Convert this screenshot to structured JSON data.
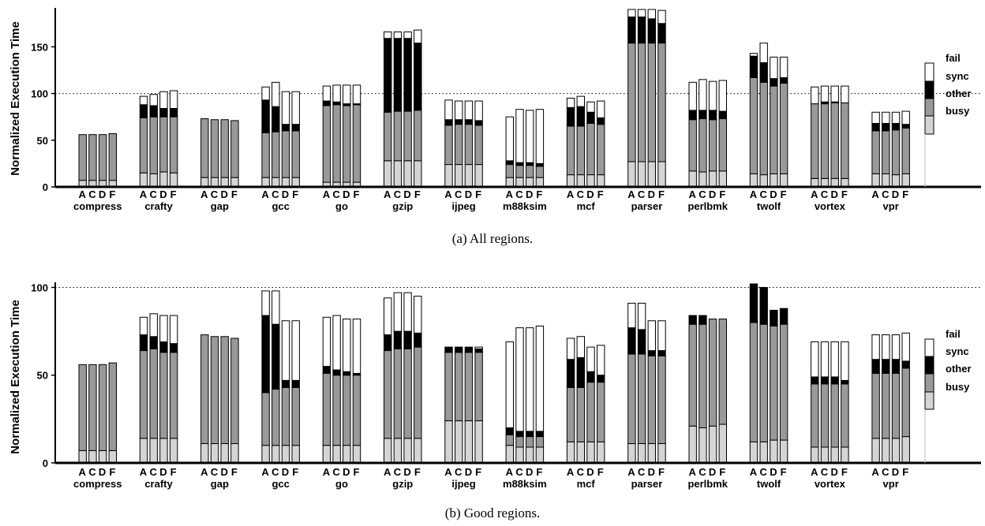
{
  "colors": {
    "busy": "#d4d4d4",
    "other": "#999999",
    "sync": "#000000",
    "fail": "#ffffff",
    "axis": "#000000"
  },
  "legend_labels": [
    "fail",
    "sync",
    "other",
    "busy"
  ],
  "chart_data": [
    {
      "type": "bar",
      "subtype": "stacked",
      "caption": "(a) All regions.",
      "ylabel": "Normalized Execution Time",
      "ylim": [
        0,
        190
      ],
      "yticks": [
        0,
        50,
        100,
        150
      ],
      "reference_line": 100,
      "bar_letters": "ACDF",
      "legend": "right",
      "categories": [
        "compress",
        "crafty",
        "gap",
        "gcc",
        "go",
        "gzip",
        "ijpeg",
        "m88ksim",
        "mcf",
        "parser",
        "perlbmk",
        "twolf",
        "vortex",
        "vpr"
      ],
      "bars": [
        [
          [
            7,
            49,
            0,
            0
          ],
          [
            7,
            49,
            0,
            0
          ],
          [
            7,
            49,
            0,
            0
          ],
          [
            7,
            50,
            0,
            0
          ]
        ],
        [
          [
            15,
            59,
            14,
            9
          ],
          [
            14,
            61,
            12,
            12
          ],
          [
            16,
            59,
            9,
            18
          ],
          [
            15,
            60,
            9,
            19
          ]
        ],
        [
          [
            10,
            63,
            0,
            0
          ],
          [
            10,
            62,
            0,
            0
          ],
          [
            10,
            62,
            0,
            0
          ],
          [
            10,
            61,
            0,
            0
          ]
        ],
        [
          [
            10,
            48,
            35,
            14
          ],
          [
            10,
            49,
            27,
            26
          ],
          [
            10,
            50,
            7,
            35
          ],
          [
            10,
            50,
            7,
            35
          ]
        ],
        [
          [
            5,
            82,
            5,
            16
          ],
          [
            5,
            83,
            3,
            18
          ],
          [
            5,
            82,
            2,
            20
          ],
          [
            5,
            83,
            1,
            20
          ]
        ],
        [
          [
            28,
            52,
            79,
            7
          ],
          [
            28,
            53,
            78,
            7
          ],
          [
            28,
            53,
            78,
            7
          ],
          [
            28,
            54,
            72,
            14
          ]
        ],
        [
          [
            24,
            42,
            6,
            21
          ],
          [
            24,
            43,
            5,
            20
          ],
          [
            24,
            43,
            5,
            20
          ],
          [
            24,
            42,
            5,
            21
          ]
        ],
        [
          [
            10,
            14,
            4,
            47
          ],
          [
            10,
            13,
            3,
            57
          ],
          [
            10,
            13,
            3,
            56
          ],
          [
            10,
            12,
            3,
            58
          ]
        ],
        [
          [
            13,
            52,
            20,
            10
          ],
          [
            13,
            52,
            21,
            11
          ],
          [
            13,
            55,
            12,
            11
          ],
          [
            13,
            54,
            7,
            18
          ]
        ],
        [
          [
            27,
            127,
            28,
            8
          ],
          [
            27,
            127,
            28,
            8
          ],
          [
            27,
            127,
            26,
            10
          ],
          [
            27,
            127,
            21,
            14
          ]
        ],
        [
          [
            17,
            55,
            10,
            30
          ],
          [
            16,
            57,
            9,
            33
          ],
          [
            17,
            55,
            10,
            31
          ],
          [
            17,
            56,
            8,
            33
          ]
        ],
        [
          [
            14,
            103,
            23,
            3
          ],
          [
            13,
            99,
            21,
            21
          ],
          [
            14,
            94,
            8,
            23
          ],
          [
            14,
            97,
            6,
            22
          ]
        ],
        [
          [
            9,
            80,
            0,
            18
          ],
          [
            9,
            80,
            2,
            17
          ],
          [
            9,
            81,
            1,
            17
          ],
          [
            9,
            81,
            0,
            18
          ]
        ],
        [
          [
            14,
            46,
            8,
            12
          ],
          [
            14,
            46,
            8,
            12
          ],
          [
            13,
            48,
            7,
            12
          ],
          [
            14,
            49,
            4,
            14
          ]
        ]
      ]
    },
    {
      "type": "bar",
      "subtype": "stacked",
      "caption": "(b) Good regions.",
      "ylabel": "Normalized Execution Time",
      "ylim": [
        0,
        102
      ],
      "yticks": [
        0,
        50,
        100
      ],
      "reference_line": 100,
      "bar_letters": "ACDF",
      "legend": "right",
      "categories": [
        "compress",
        "crafty",
        "gap",
        "gcc",
        "go",
        "gzip",
        "ijpeg",
        "m88ksim",
        "mcf",
        "parser",
        "perlbmk",
        "twolf",
        "vortex",
        "vpr"
      ],
      "bars": [
        [
          [
            7,
            49,
            0,
            0
          ],
          [
            7,
            49,
            0,
            0
          ],
          [
            7,
            49,
            0,
            0
          ],
          [
            7,
            50,
            0,
            0
          ]
        ],
        [
          [
            14,
            50,
            9,
            10
          ],
          [
            14,
            51,
            7,
            13
          ],
          [
            14,
            49,
            6,
            15
          ],
          [
            14,
            49,
            5,
            16
          ]
        ],
        [
          [
            11,
            62,
            0,
            0
          ],
          [
            11,
            61,
            0,
            0
          ],
          [
            11,
            61,
            0,
            0
          ],
          [
            11,
            60,
            0,
            0
          ]
        ],
        [
          [
            10,
            30,
            44,
            14
          ],
          [
            10,
            32,
            37,
            19
          ],
          [
            10,
            33,
            4,
            34
          ],
          [
            10,
            33,
            4,
            34
          ]
        ],
        [
          [
            10,
            41,
            4,
            28
          ],
          [
            10,
            40,
            3,
            31
          ],
          [
            10,
            40,
            2,
            30
          ],
          [
            10,
            40,
            1,
            31
          ]
        ],
        [
          [
            14,
            50,
            9,
            21
          ],
          [
            14,
            51,
            10,
            22
          ],
          [
            14,
            51,
            10,
            22
          ],
          [
            14,
            52,
            8,
            21
          ]
        ],
        [
          [
            24,
            39,
            3,
            0
          ],
          [
            24,
            39,
            3,
            0
          ],
          [
            24,
            39,
            3,
            0
          ],
          [
            24,
            39,
            2,
            1
          ]
        ],
        [
          [
            10,
            6,
            4,
            49
          ],
          [
            9,
            6,
            3,
            59
          ],
          [
            9,
            6,
            3,
            59
          ],
          [
            9,
            6,
            3,
            60
          ]
        ],
        [
          [
            12,
            31,
            16,
            12
          ],
          [
            12,
            31,
            17,
            12
          ],
          [
            12,
            34,
            6,
            14
          ],
          [
            12,
            34,
            4,
            17
          ]
        ],
        [
          [
            11,
            51,
            15,
            14
          ],
          [
            11,
            51,
            14,
            15
          ],
          [
            11,
            50,
            3,
            17
          ],
          [
            11,
            50,
            3,
            17
          ]
        ],
        [
          [
            21,
            58,
            5,
            0
          ],
          [
            20,
            59,
            5,
            0
          ],
          [
            21,
            61,
            0,
            0
          ],
          [
            22,
            60,
            0,
            0
          ]
        ],
        [
          [
            12,
            68,
            22,
            0
          ],
          [
            12,
            67,
            21,
            0
          ],
          [
            13,
            65,
            9,
            0
          ],
          [
            13,
            66,
            9,
            0
          ]
        ],
        [
          [
            9,
            36,
            4,
            20
          ],
          [
            9,
            36,
            4,
            20
          ],
          [
            9,
            36,
            4,
            20
          ],
          [
            9,
            36,
            2,
            22
          ]
        ],
        [
          [
            14,
            37,
            8,
            14
          ],
          [
            14,
            37,
            8,
            14
          ],
          [
            14,
            37,
            8,
            14
          ],
          [
            15,
            39,
            4,
            16
          ]
        ]
      ]
    }
  ]
}
